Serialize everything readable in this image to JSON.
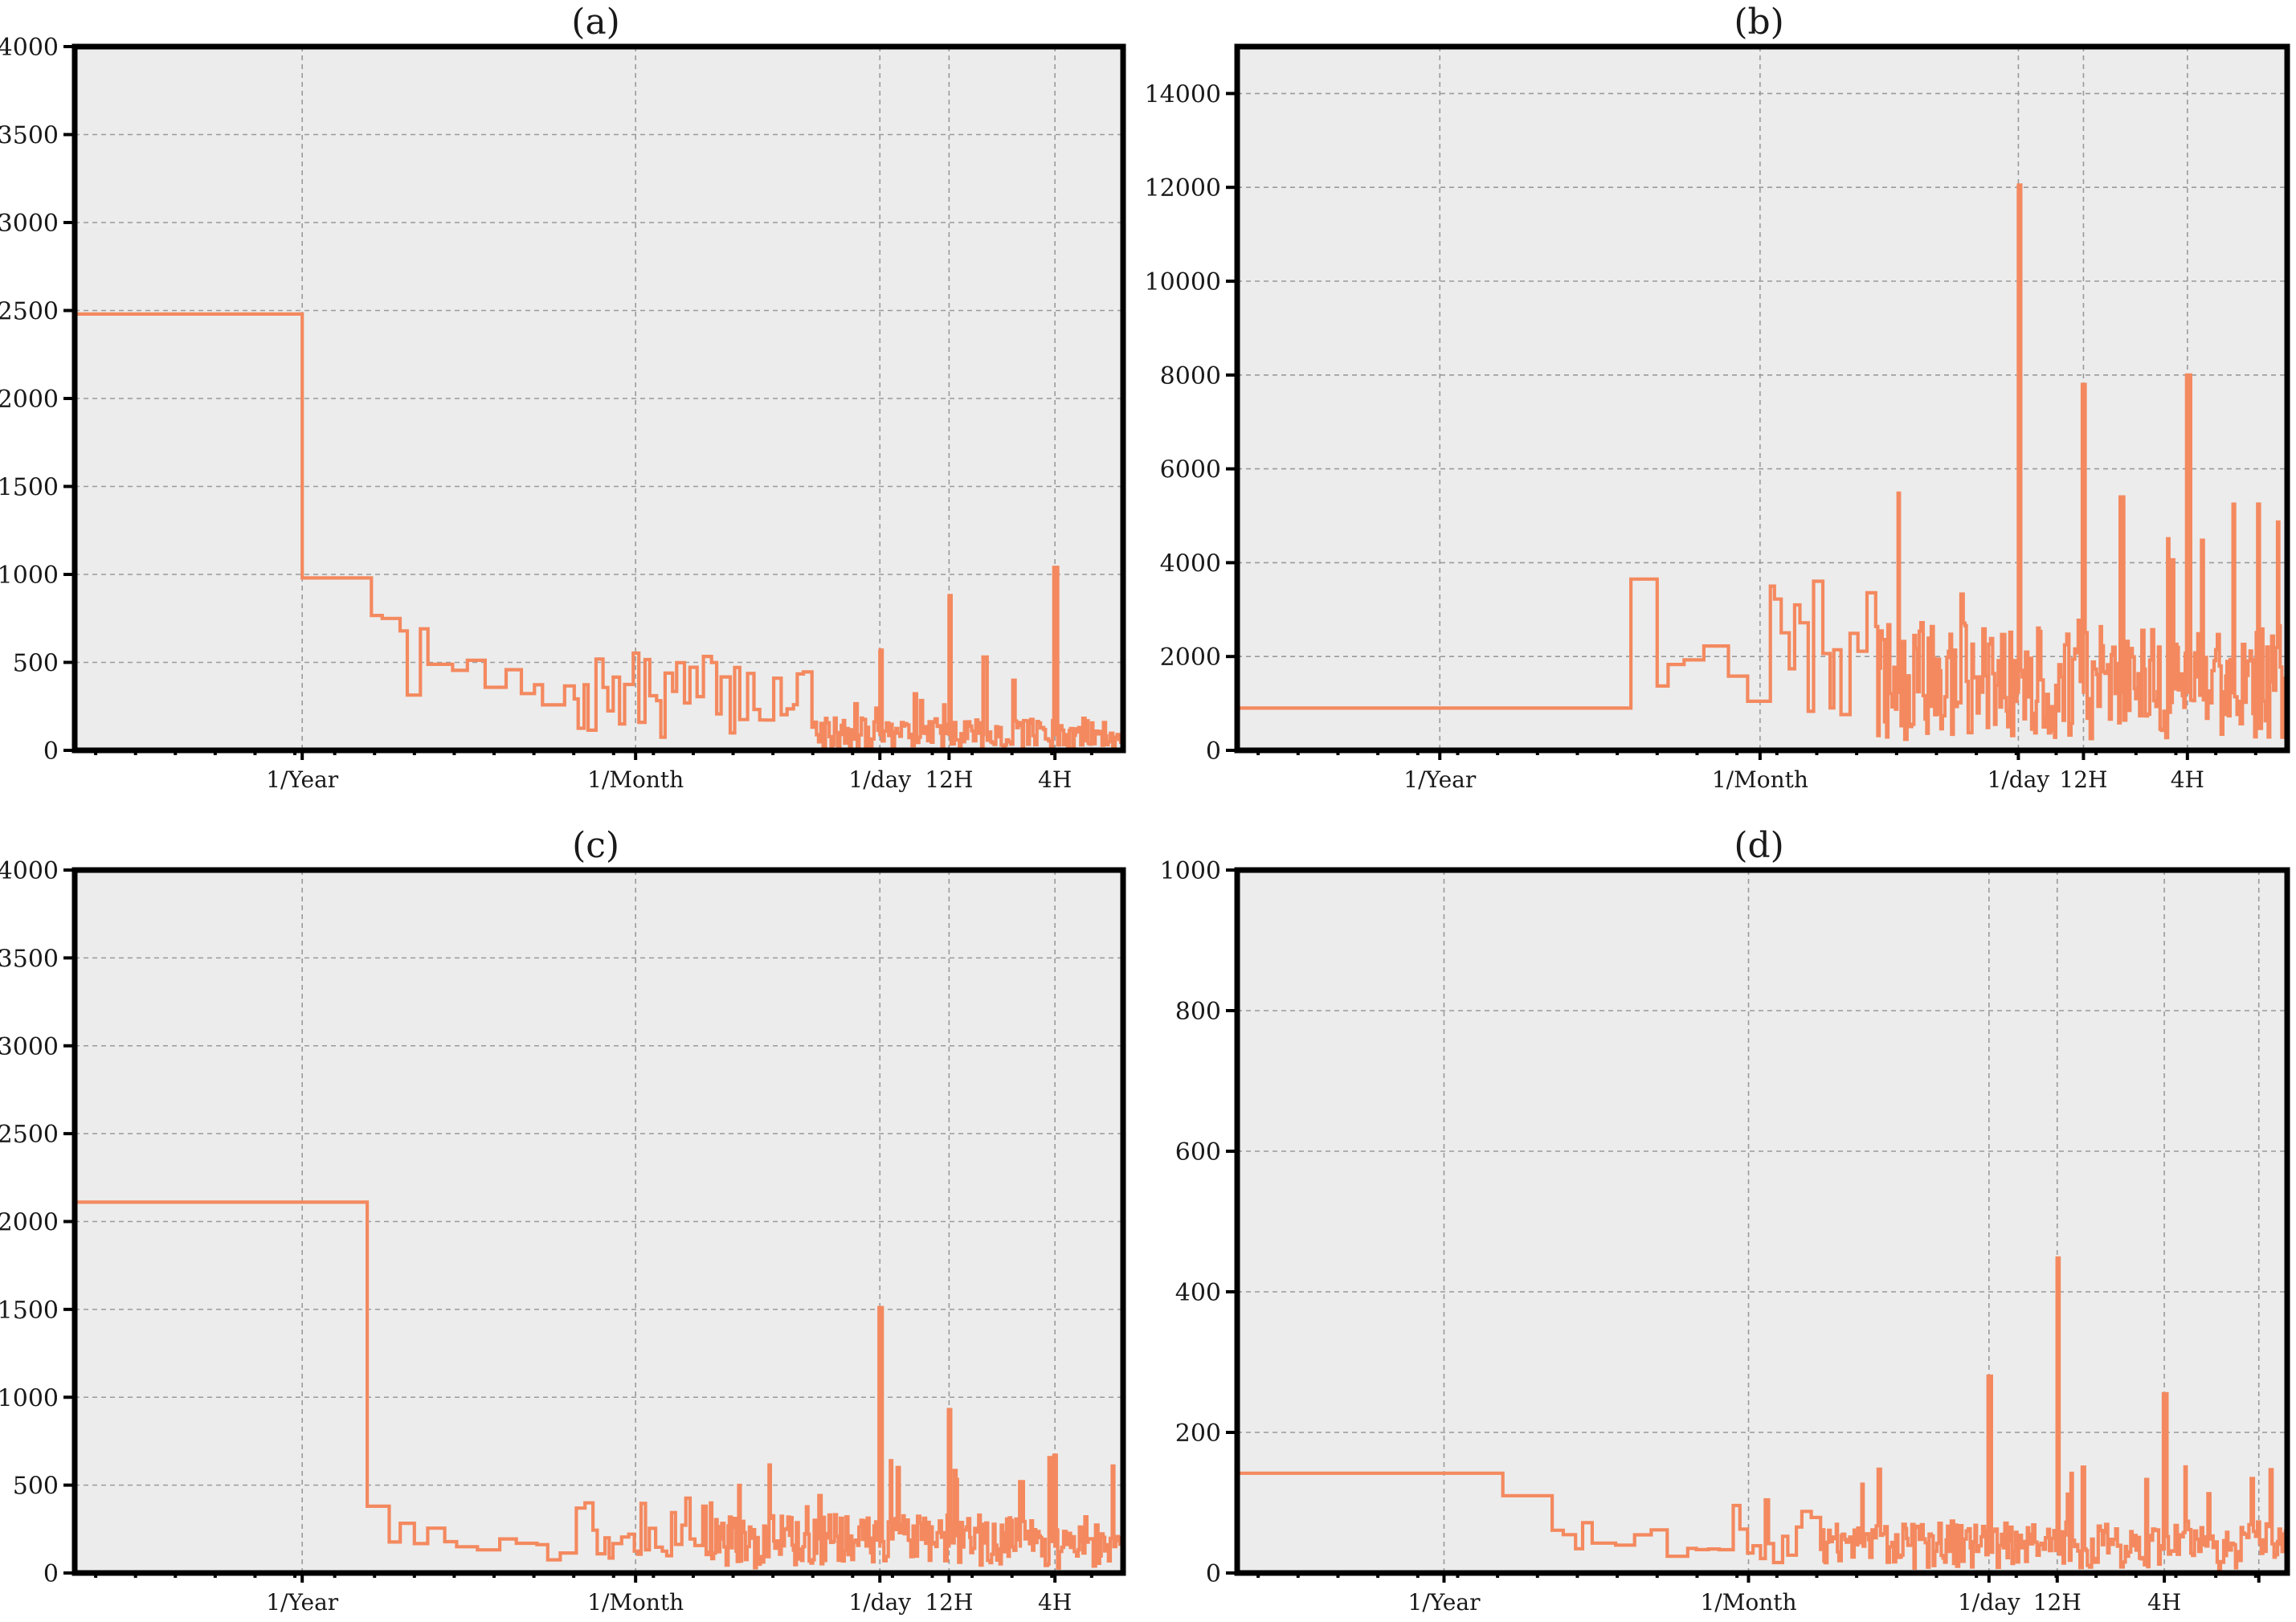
{
  "colors": {
    "series": "#f4895f",
    "background": "#ececec",
    "frame": "#000000"
  },
  "chart_data": [
    {
      "type": "line",
      "title": "(a)",
      "xscale": "log",
      "xtick_labels": [
        "1/Year",
        "1/Month",
        "1/day",
        "12H",
        "4H"
      ],
      "ylim": [
        0,
        4000
      ],
      "yticks": [
        0,
        500,
        1000,
        1500,
        2000,
        2500,
        3000,
        3500,
        4000
      ],
      "grid": true,
      "levels": [
        {
          "from": "start",
          "to": "1/Year",
          "value": 2480
        },
        {
          "from": "1/Year",
          "value": 980
        },
        {
          "near": "between 1/Year and 1/Month",
          "value": 500
        }
      ],
      "peaks": [
        {
          "at": "1/day",
          "value": 570
        },
        {
          "at": "12H",
          "value": 880
        },
        {
          "at": "between 12H and 4H",
          "value": 530
        },
        {
          "at": "4H",
          "value": 1040
        }
      ],
      "noise_floor_high_freq": 100
    },
    {
      "type": "line",
      "title": "(b)",
      "xscale": "log",
      "xtick_labels": [
        "1/Year",
        "1/Month",
        "1/day",
        "12H",
        "4H"
      ],
      "ylim": [
        0,
        15000
      ],
      "yticks": [
        0,
        2000,
        4000,
        6000,
        8000,
        10000,
        12000,
        14000
      ],
      "grid": true,
      "levels": [
        {
          "from": "start",
          "to": "past 1/Year",
          "value": 900
        },
        {
          "near": "between 1/Year and 1/Month",
          "value": 3650
        }
      ],
      "peaks": [
        {
          "at": "1/day",
          "value": 12050
        },
        {
          "at": "12H",
          "value": 7800
        },
        {
          "at": "between 12H and 4H",
          "value": 5400
        },
        {
          "at": "4H",
          "value": 8000
        }
      ],
      "noise_floor_high_freq": 1500
    },
    {
      "type": "line",
      "title": "(c)",
      "xscale": "log",
      "xtick_labels": [
        "1/Year",
        "1/Month",
        "1/day",
        "12H",
        "4H"
      ],
      "ylim": [
        0,
        4000
      ],
      "yticks": [
        0,
        500,
        1000,
        1500,
        2000,
        2500,
        3000,
        3500,
        4000
      ],
      "grid": true,
      "levels": [
        {
          "from": "start",
          "to": "past 1/Year",
          "value": 2110
        },
        {
          "near": "between 1/Year and 1/Month",
          "value": 380
        }
      ],
      "peaks": [
        {
          "at": "1/day",
          "value": 1510
        },
        {
          "at": "12H",
          "value": 930
        },
        {
          "at": "between 12H and 4H",
          "value": 520
        },
        {
          "at": "4H",
          "value": 670
        }
      ],
      "noise_floor_high_freq": 180
    },
    {
      "type": "line",
      "title": "(d)",
      "xscale": "log",
      "xtick_labels": [
        "1/Year",
        "1/Month",
        "1/day",
        "12H",
        "4H"
      ],
      "ylim": [
        0,
        1000
      ],
      "yticks": [
        0,
        200,
        400,
        600,
        800,
        1000
      ],
      "grid": true,
      "levels": [
        {
          "from": "start",
          "to": "past 1/Year",
          "value": 142
        },
        {
          "near": "between 1/Year and 1/Month",
          "value": 110
        }
      ],
      "peaks": [
        {
          "at": "1/day",
          "value": 280
        },
        {
          "at": "12H",
          "value": 448
        },
        {
          "at": "4H",
          "value": 255
        }
      ],
      "noise_floor_high_freq": 40
    }
  ]
}
